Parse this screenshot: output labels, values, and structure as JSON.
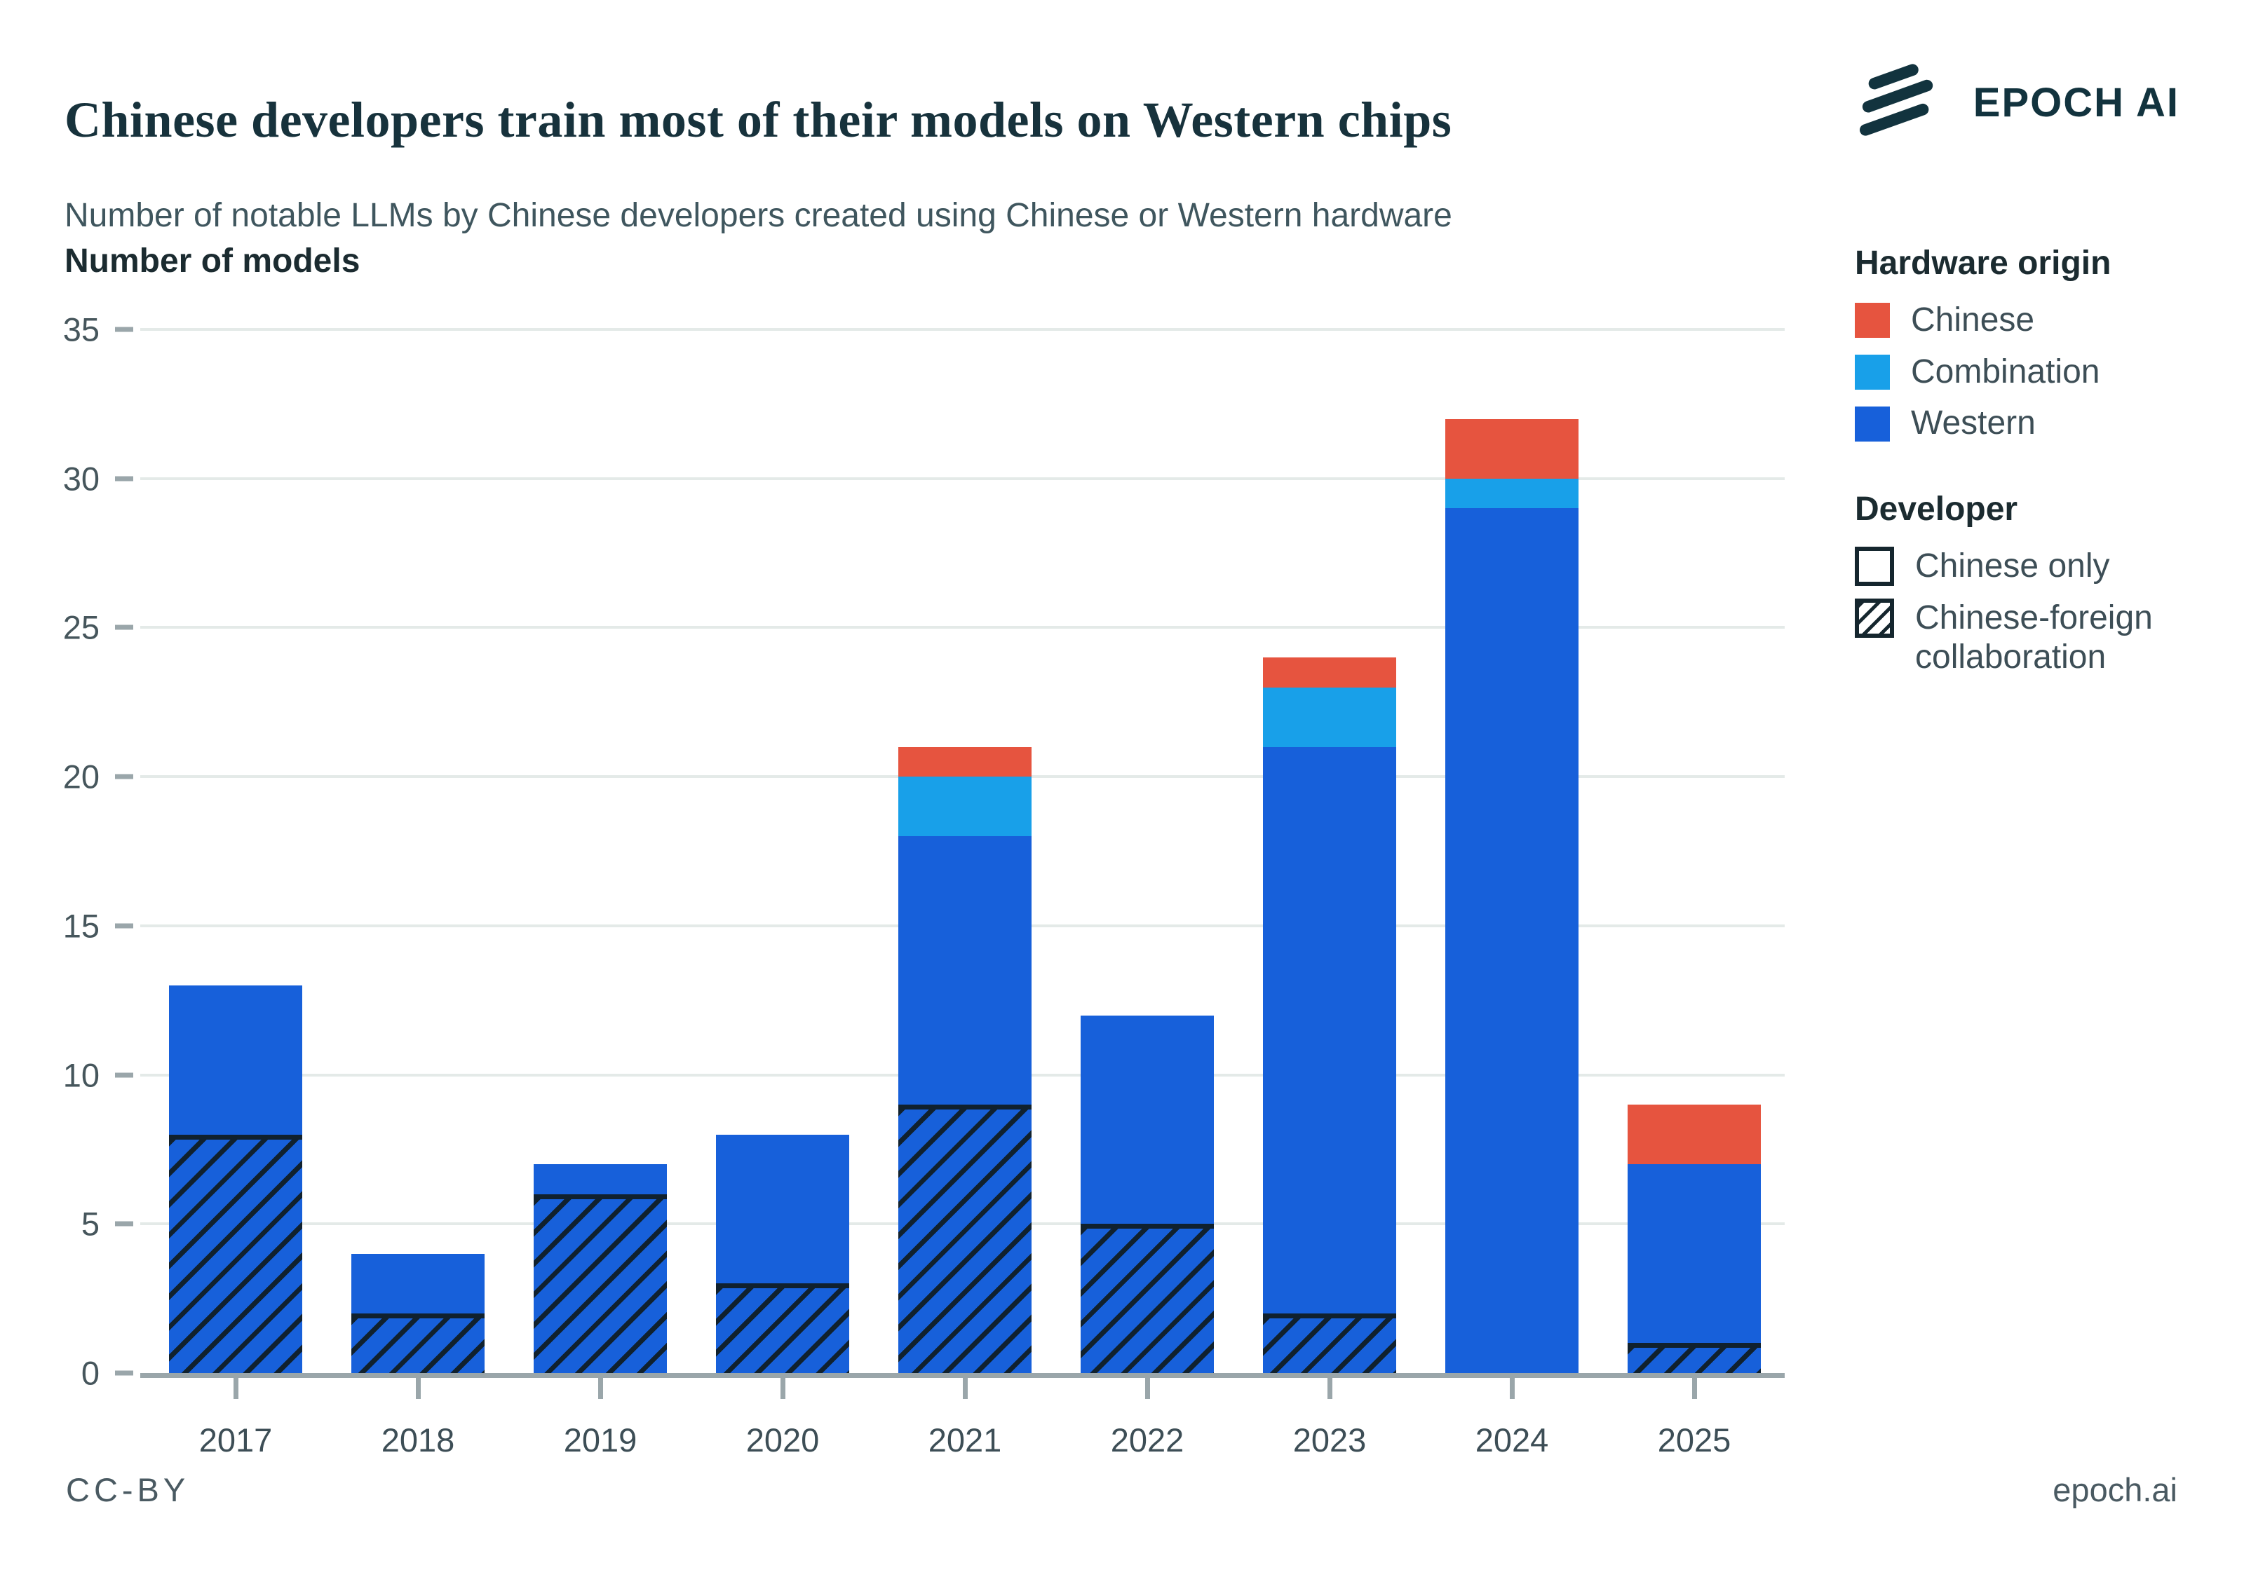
{
  "header": {
    "logo_text": "EPOCH AI"
  },
  "footer": {
    "license": "CC-BY",
    "site": "epoch.ai"
  },
  "colors": {
    "chinese": "#E6543F",
    "combination": "#18A0E9",
    "western": "#1760DA",
    "hatch": "#10212E",
    "axis_line": "#9AA6AA",
    "gridline": "#E4EAE8",
    "dark_text": "#17323C",
    "muted_text": "#3F565E"
  },
  "legend": {
    "hardware_title": "Hardware origin",
    "hardware_items": [
      {
        "label": "Chinese",
        "color_key": "chinese"
      },
      {
        "label": "Combination",
        "color_key": "combination"
      },
      {
        "label": "Western",
        "color_key": "western"
      }
    ],
    "developer_title": "Developer",
    "developer_items": [
      {
        "label": "Chinese only",
        "hatched": false
      },
      {
        "label": "Chinese-foreign collaboration",
        "hatched": true
      }
    ]
  },
  "chart_data": {
    "type": "bar",
    "stacked": true,
    "title": "Chinese developers train most of their models on Western chips",
    "subtitle": "Number of notable LLMs by Chinese developers created using Chinese or Western hardware",
    "ylabel": "Number of models",
    "xlabel": "",
    "ylim": [
      0,
      35
    ],
    "yticks": [
      0,
      5,
      10,
      15,
      20,
      25,
      30,
      35
    ],
    "grid": true,
    "legend_position": "right",
    "categories": [
      "2017",
      "2018",
      "2019",
      "2020",
      "2021",
      "2022",
      "2023",
      "2024",
      "2025"
    ],
    "series": [
      {
        "name": "Western hardware — Chinese-foreign collaboration",
        "hardware": "Western",
        "developer": "Chinese-foreign collaboration",
        "color_key": "western",
        "hatched": true,
        "values": [
          8,
          2,
          6,
          3,
          9,
          5,
          2,
          0,
          1
        ]
      },
      {
        "name": "Western hardware — Chinese only",
        "hardware": "Western",
        "developer": "Chinese only",
        "color_key": "western",
        "hatched": false,
        "values": [
          5,
          2,
          1,
          5,
          9,
          7,
          19,
          29,
          6
        ]
      },
      {
        "name": "Combination hardware — Chinese only",
        "hardware": "Combination",
        "developer": "Chinese only",
        "color_key": "combination",
        "hatched": false,
        "values": [
          0,
          0,
          0,
          0,
          2,
          0,
          2,
          1,
          0
        ]
      },
      {
        "name": "Chinese hardware — Chinese only",
        "hardware": "Chinese",
        "developer": "Chinese only",
        "color_key": "chinese",
        "hatched": false,
        "values": [
          0,
          0,
          0,
          0,
          1,
          0,
          1,
          2,
          2
        ]
      }
    ],
    "totals": [
      13,
      4,
      7,
      8,
      21,
      12,
      24,
      32,
      9
    ]
  }
}
